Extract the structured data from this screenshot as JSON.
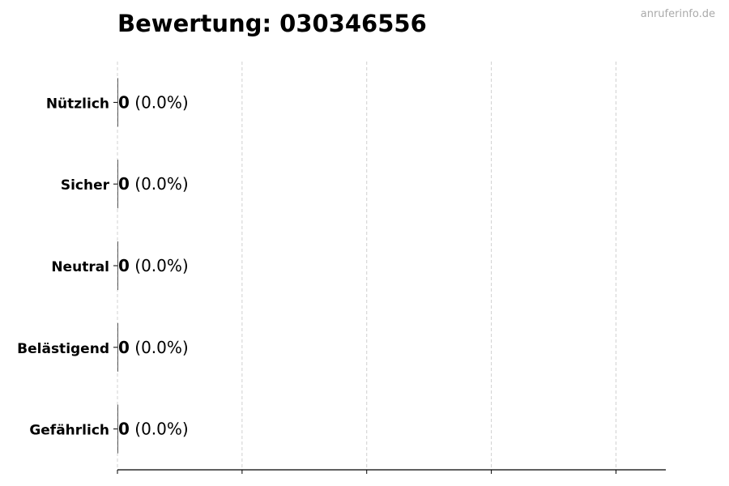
{
  "chart_data": {
    "type": "bar",
    "orientation": "horizontal",
    "title": "Bewertung: 030346556",
    "watermark": "anruferinfo.de",
    "categories": [
      "Nützlich",
      "Sicher",
      "Neutral",
      "Belästigend",
      "Gefährlich"
    ],
    "values": [
      0,
      0,
      0,
      0,
      0
    ],
    "data_labels": [
      {
        "count": "0",
        "percent": "(0.0%)"
      },
      {
        "count": "0",
        "percent": "(0.0%)"
      },
      {
        "count": "0",
        "percent": "(0.0%)"
      },
      {
        "count": "0",
        "percent": "(0.0%)"
      },
      {
        "count": "0",
        "percent": "(0.0%)"
      }
    ],
    "xlim": [
      0,
      4.4
    ],
    "xticks": [
      0,
      1,
      2,
      3,
      4
    ],
    "xtick_labels_shown": false,
    "grid": "x, dashed",
    "xlabel": "",
    "ylabel": ""
  }
}
